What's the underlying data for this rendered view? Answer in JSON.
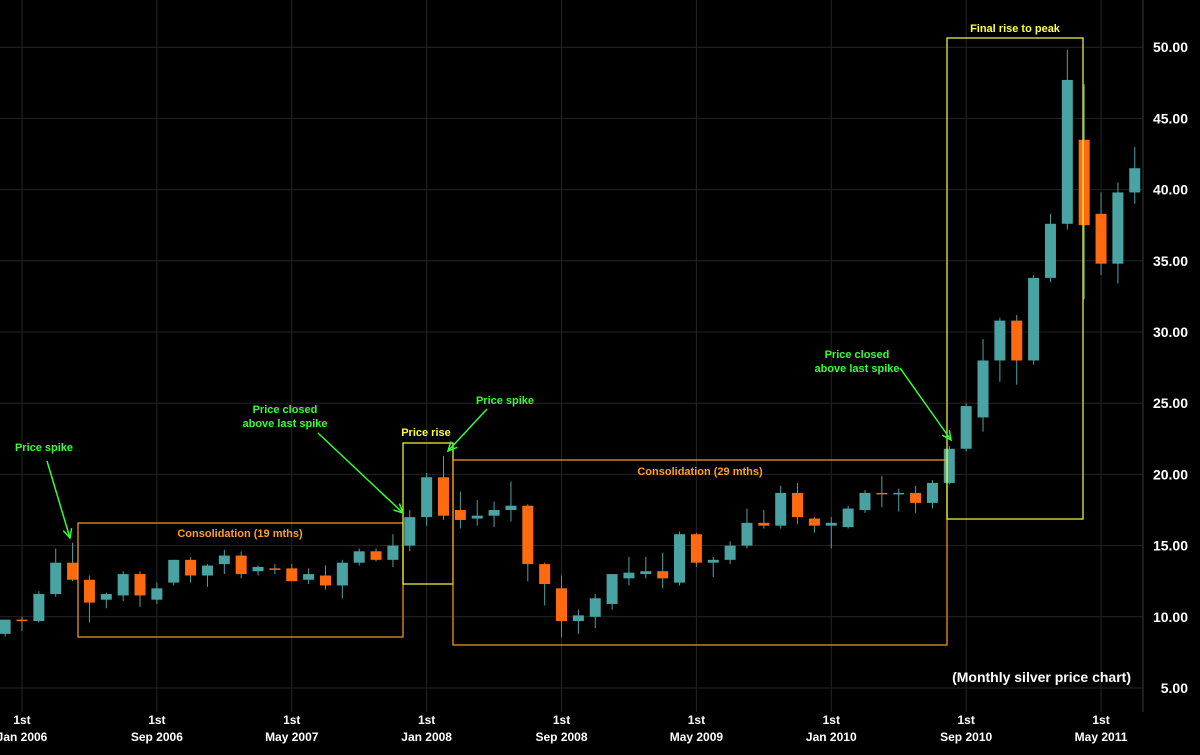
{
  "chart_data": {
    "type": "candlestick",
    "title": "",
    "caption": "(Monthly silver price chart)",
    "xlabel": "",
    "ylabel": "",
    "ylim": [
      3.5,
      53
    ],
    "grid": true,
    "legend": "none",
    "y_ticks": [
      "5.00",
      "10.00",
      "15.00",
      "20.00",
      "25.00",
      "30.00",
      "35.00",
      "40.00",
      "45.00",
      "50.00"
    ],
    "x_ticks": [
      {
        "top": "1st",
        "bottom": "Jan 2006",
        "month": "2006-01"
      },
      {
        "top": "1st",
        "bottom": "Sep 2006",
        "month": "2006-09"
      },
      {
        "top": "1st",
        "bottom": "May 2007",
        "month": "2007-05"
      },
      {
        "top": "1st",
        "bottom": "Jan 2008",
        "month": "2008-01"
      },
      {
        "top": "1st",
        "bottom": "Sep 2008",
        "month": "2008-09"
      },
      {
        "top": "1st",
        "bottom": "May 2009",
        "month": "2009-05"
      },
      {
        "top": "1st",
        "bottom": "Jan 2010",
        "month": "2010-01"
      },
      {
        "top": "1st",
        "bottom": "Sep 2010",
        "month": "2010-09"
      },
      {
        "top": "1st",
        "bottom": "May 2011",
        "month": "2011-05"
      }
    ],
    "colors": {
      "up": "#4aa3a3",
      "down": "#ff6a10",
      "annotation_green": "#33ff33",
      "annotation_yellow": "#ffff44",
      "annotation_orange": "#ffa020",
      "grid": "#252525"
    },
    "candles": [
      {
        "month": "2005-12",
        "open": 8.8,
        "high": 9.8,
        "low": 8.6,
        "close": 9.8
      },
      {
        "month": "2006-01",
        "open": 9.8,
        "high": 10.0,
        "low": 9.0,
        "close": 9.7
      },
      {
        "month": "2006-02",
        "open": 9.7,
        "high": 11.8,
        "low": 9.6,
        "close": 11.6
      },
      {
        "month": "2006-03",
        "open": 11.6,
        "high": 14.8,
        "low": 11.4,
        "close": 13.8
      },
      {
        "month": "2006-04",
        "open": 13.8,
        "high": 15.2,
        "low": 12.5,
        "close": 12.6
      },
      {
        "month": "2006-05",
        "open": 12.6,
        "high": 12.9,
        "low": 9.6,
        "close": 11.0
      },
      {
        "month": "2006-06",
        "open": 11.2,
        "high": 11.7,
        "low": 10.6,
        "close": 11.6
      },
      {
        "month": "2006-07",
        "open": 11.5,
        "high": 13.2,
        "low": 11.1,
        "close": 13.0
      },
      {
        "month": "2006-08",
        "open": 13.0,
        "high": 13.2,
        "low": 10.7,
        "close": 11.5
      },
      {
        "month": "2006-09",
        "open": 11.2,
        "high": 12.4,
        "low": 10.9,
        "close": 12.0
      },
      {
        "month": "2006-10",
        "open": 12.4,
        "high": 14.0,
        "low": 12.2,
        "close": 14.0
      },
      {
        "month": "2006-11",
        "open": 14.0,
        "high": 14.2,
        "low": 12.4,
        "close": 12.9
      },
      {
        "month": "2006-12",
        "open": 12.9,
        "high": 13.7,
        "low": 12.1,
        "close": 13.6
      },
      {
        "month": "2007-01",
        "open": 13.7,
        "high": 14.7,
        "low": 13.0,
        "close": 14.3
      },
      {
        "month": "2007-02",
        "open": 14.3,
        "high": 14.6,
        "low": 12.7,
        "close": 13.0
      },
      {
        "month": "2007-03",
        "open": 13.2,
        "high": 13.6,
        "low": 12.9,
        "close": 13.5
      },
      {
        "month": "2007-04",
        "open": 13.4,
        "high": 13.7,
        "low": 13.0,
        "close": 13.3
      },
      {
        "month": "2007-05",
        "open": 13.4,
        "high": 13.7,
        "low": 12.5,
        "close": 12.5
      },
      {
        "month": "2007-06",
        "open": 12.6,
        "high": 13.4,
        "low": 12.3,
        "close": 13.0
      },
      {
        "month": "2007-07",
        "open": 12.9,
        "high": 13.6,
        "low": 11.9,
        "close": 12.2
      },
      {
        "month": "2007-08",
        "open": 12.2,
        "high": 14.0,
        "low": 11.3,
        "close": 13.8
      },
      {
        "month": "2007-09",
        "open": 13.8,
        "high": 14.8,
        "low": 13.6,
        "close": 14.6
      },
      {
        "month": "2007-10",
        "open": 14.6,
        "high": 14.8,
        "low": 13.9,
        "close": 14.0
      },
      {
        "month": "2007-11",
        "open": 14.0,
        "high": 15.8,
        "low": 13.5,
        "close": 15.0
      },
      {
        "month": "2007-12",
        "open": 15.0,
        "high": 17.5,
        "low": 14.6,
        "close": 17.0
      },
      {
        "month": "2008-01",
        "open": 17.0,
        "high": 20.1,
        "low": 16.4,
        "close": 19.8
      },
      {
        "month": "2008-02",
        "open": 19.8,
        "high": 21.3,
        "low": 16.8,
        "close": 17.1
      },
      {
        "month": "2008-03",
        "open": 17.5,
        "high": 18.8,
        "low": 16.2,
        "close": 16.8
      },
      {
        "month": "2008-04",
        "open": 16.9,
        "high": 18.2,
        "low": 16.4,
        "close": 17.1
      },
      {
        "month": "2008-05",
        "open": 17.1,
        "high": 18.1,
        "low": 16.3,
        "close": 17.5
      },
      {
        "month": "2008-06",
        "open": 17.5,
        "high": 19.5,
        "low": 16.7,
        "close": 17.8
      },
      {
        "month": "2008-07",
        "open": 17.8,
        "high": 17.9,
        "low": 12.5,
        "close": 13.7
      },
      {
        "month": "2008-08",
        "open": 13.7,
        "high": 13.8,
        "low": 10.8,
        "close": 12.3
      },
      {
        "month": "2008-09",
        "open": 12.0,
        "high": 12.9,
        "low": 8.6,
        "close": 9.7
      },
      {
        "month": "2008-10",
        "open": 9.7,
        "high": 10.5,
        "low": 8.8,
        "close": 10.1
      },
      {
        "month": "2008-11",
        "open": 10.0,
        "high": 11.6,
        "low": 9.2,
        "close": 11.3
      },
      {
        "month": "2008-12",
        "open": 10.9,
        "high": 13.0,
        "low": 10.5,
        "close": 13.0
      },
      {
        "month": "2009-01",
        "open": 12.7,
        "high": 14.2,
        "low": 12.2,
        "close": 13.1
      },
      {
        "month": "2009-02",
        "open": 13.0,
        "high": 14.2,
        "low": 12.7,
        "close": 13.2
      },
      {
        "month": "2009-03",
        "open": 13.2,
        "high": 14.5,
        "low": 12.0,
        "close": 12.7
      },
      {
        "month": "2009-04",
        "open": 12.4,
        "high": 16.0,
        "low": 12.2,
        "close": 15.8
      },
      {
        "month": "2009-05",
        "open": 15.8,
        "high": 15.9,
        "low": 13.5,
        "close": 13.8
      },
      {
        "month": "2009-06",
        "open": 13.8,
        "high": 14.2,
        "low": 12.8,
        "close": 14.0
      },
      {
        "month": "2009-07",
        "open": 14.0,
        "high": 15.3,
        "low": 13.7,
        "close": 15.0
      },
      {
        "month": "2009-08",
        "open": 15.0,
        "high": 17.6,
        "low": 14.8,
        "close": 16.6
      },
      {
        "month": "2009-09",
        "open": 16.6,
        "high": 17.5,
        "low": 16.2,
        "close": 16.4
      },
      {
        "month": "2009-10",
        "open": 16.4,
        "high": 19.2,
        "low": 16.2,
        "close": 18.7
      },
      {
        "month": "2009-11",
        "open": 18.7,
        "high": 19.4,
        "low": 16.5,
        "close": 17.0
      },
      {
        "month": "2009-12",
        "open": 16.9,
        "high": 17.0,
        "low": 15.9,
        "close": 16.4
      },
      {
        "month": "2010-01",
        "open": 16.4,
        "high": 17.0,
        "low": 14.8,
        "close": 16.6
      },
      {
        "month": "2010-02",
        "open": 16.3,
        "high": 17.8,
        "low": 16.2,
        "close": 17.6
      },
      {
        "month": "2010-03",
        "open": 17.5,
        "high": 18.9,
        "low": 17.3,
        "close": 18.7
      },
      {
        "month": "2010-04",
        "open": 18.7,
        "high": 19.9,
        "low": 17.7,
        "close": 18.6
      },
      {
        "month": "2010-05",
        "open": 18.6,
        "high": 19.0,
        "low": 17.4,
        "close": 18.7
      },
      {
        "month": "2010-06",
        "open": 18.7,
        "high": 19.2,
        "low": 17.3,
        "close": 18.0
      },
      {
        "month": "2010-07",
        "open": 18.0,
        "high": 19.6,
        "low": 17.6,
        "close": 19.4
      },
      {
        "month": "2010-08",
        "open": 19.4,
        "high": 22.0,
        "low": 19.3,
        "close": 21.8
      },
      {
        "month": "2010-09",
        "open": 21.8,
        "high": 25.0,
        "low": 21.6,
        "close": 24.8
      },
      {
        "month": "2010-10",
        "open": 24.0,
        "high": 29.5,
        "low": 23.0,
        "close": 28.0
      },
      {
        "month": "2010-11",
        "open": 28.0,
        "high": 31.0,
        "low": 26.5,
        "close": 30.8
      },
      {
        "month": "2010-12",
        "open": 30.8,
        "high": 31.2,
        "low": 26.3,
        "close": 28.0
      },
      {
        "month": "2011-01",
        "open": 28.0,
        "high": 34.0,
        "low": 27.7,
        "close": 33.8
      },
      {
        "month": "2011-02",
        "open": 33.8,
        "high": 38.3,
        "low": 33.5,
        "close": 37.6
      },
      {
        "month": "2011-03",
        "open": 37.6,
        "high": 49.8,
        "low": 37.2,
        "close": 47.7
      },
      {
        "month": "2011-04",
        "open": 43.5,
        "high": 47.4,
        "low": 32.3,
        "close": 37.5
      },
      {
        "month": "2011-05",
        "open": 38.3,
        "high": 39.8,
        "low": 34.0,
        "close": 34.8
      },
      {
        "month": "2011-06",
        "open": 34.8,
        "high": 40.5,
        "low": 33.4,
        "close": 39.8
      },
      {
        "month": "2011-07",
        "open": 39.8,
        "high": 43.0,
        "low": 39.0,
        "close": 41.5
      }
    ],
    "annotations": [
      {
        "id": "price-spike-2006",
        "lines": [
          "Price spike"
        ],
        "color": "green"
      },
      {
        "id": "consolidation-19",
        "lines": [
          "Consolidation (19 mths)"
        ],
        "color": "orange"
      },
      {
        "id": "closed-above-2008",
        "lines": [
          "Price closed",
          "above last spike"
        ],
        "color": "green"
      },
      {
        "id": "price-rise",
        "lines": [
          "Price rise"
        ],
        "color": "yellow"
      },
      {
        "id": "price-spike-2008",
        "lines": [
          "Price spike"
        ],
        "color": "green"
      },
      {
        "id": "consolidation-29",
        "lines": [
          "Consolidation (29 mths)"
        ],
        "color": "orange"
      },
      {
        "id": "closed-above-2010",
        "lines": [
          "Price closed",
          "above last spike"
        ],
        "color": "green"
      },
      {
        "id": "final-rise",
        "lines": [
          "Final rise to peak"
        ],
        "color": "yellow"
      }
    ]
  }
}
